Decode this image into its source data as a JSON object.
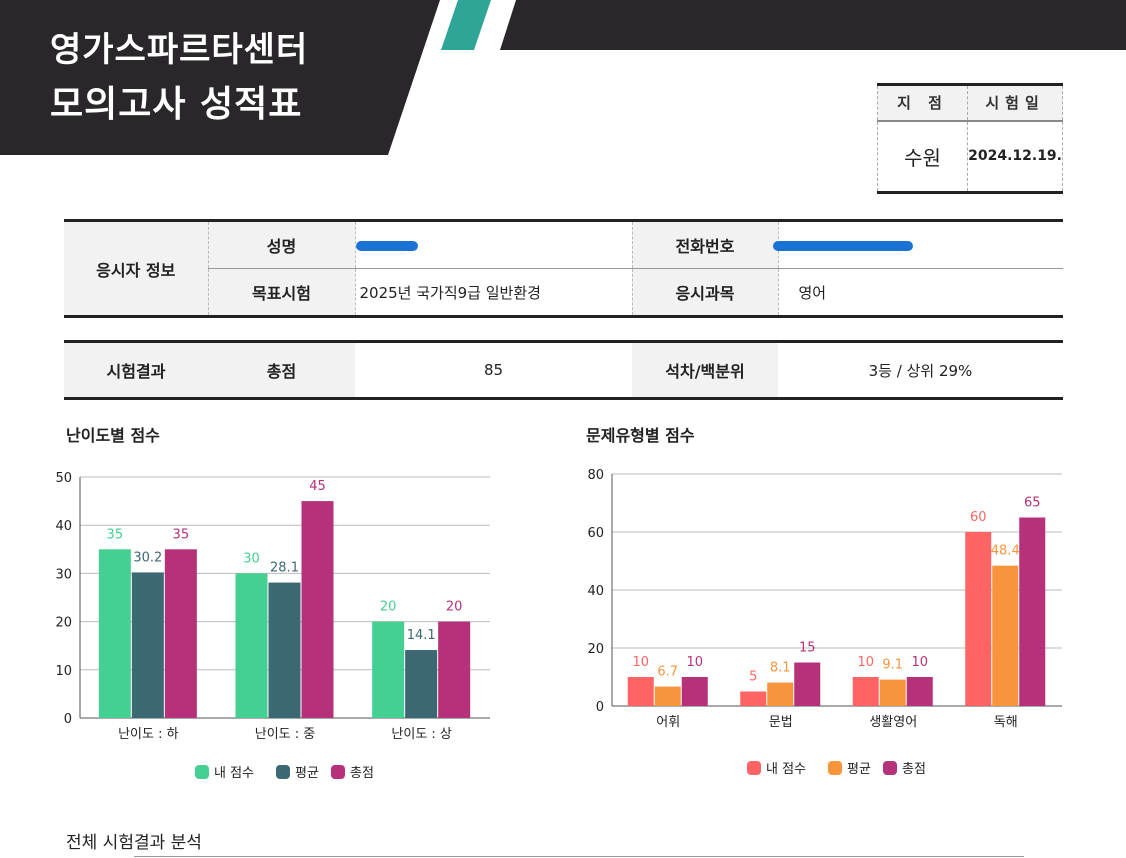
{
  "header": {
    "line1": "영가스파르타센터",
    "line2": "모의고사 성적표"
  },
  "meta": {
    "branch_label": "지 점",
    "date_label": "시험일",
    "branch": "수원",
    "date": "2024.12.19."
  },
  "info": {
    "section": "응시자 정보",
    "name_label": "성명",
    "phone_label": "전화번호",
    "target_label": "목표시험",
    "target": "2025년 국가직9급 일반환경",
    "subject_label": "응시과목",
    "subject": "영어"
  },
  "result": {
    "section": "시험결과",
    "total_label": "총점",
    "total": "85",
    "rank_label": "석차/백분위",
    "rank": "3등 / 상위 29%"
  },
  "chart_data": [
    {
      "type": "bar",
      "title": "난이도별 점수",
      "categories": [
        "난이도 : 하",
        "난이도 : 중",
        "난이도 : 상"
      ],
      "ylim": [
        0,
        50
      ],
      "yticks": [
        "0",
        "10",
        "20",
        "30",
        "40",
        "50"
      ],
      "legend": "bottom",
      "series": [
        {
          "name": "내 점수",
          "color": "#45cf92",
          "values": [
            35,
            30,
            20
          ]
        },
        {
          "name": "평균",
          "color": "#3c6874",
          "values": [
            30.2,
            28.1,
            14.1
          ]
        },
        {
          "name": "총점",
          "color": "#b5317a",
          "values": [
            35,
            45,
            20
          ]
        }
      ]
    },
    {
      "type": "bar",
      "title": "문제유형별 점수",
      "categories": [
        "어휘",
        "문법",
        "생활영어",
        "독해"
      ],
      "ylim": [
        0,
        80
      ],
      "yticks": [
        "0",
        "20",
        "40",
        "60",
        "80"
      ],
      "legend": "bottom",
      "series": [
        {
          "name": "내 점수",
          "color": "#ff6464",
          "values": [
            10,
            5,
            10,
            60
          ]
        },
        {
          "name": "평균",
          "color": "#f7943c",
          "values": [
            6.7,
            8.1,
            9.1,
            48.4
          ]
        },
        {
          "name": "총점",
          "color": "#b5317a",
          "values": [
            10,
            15,
            10,
            65
          ]
        }
      ]
    }
  ],
  "footer": {
    "title": "전체 시험결과  분석"
  }
}
